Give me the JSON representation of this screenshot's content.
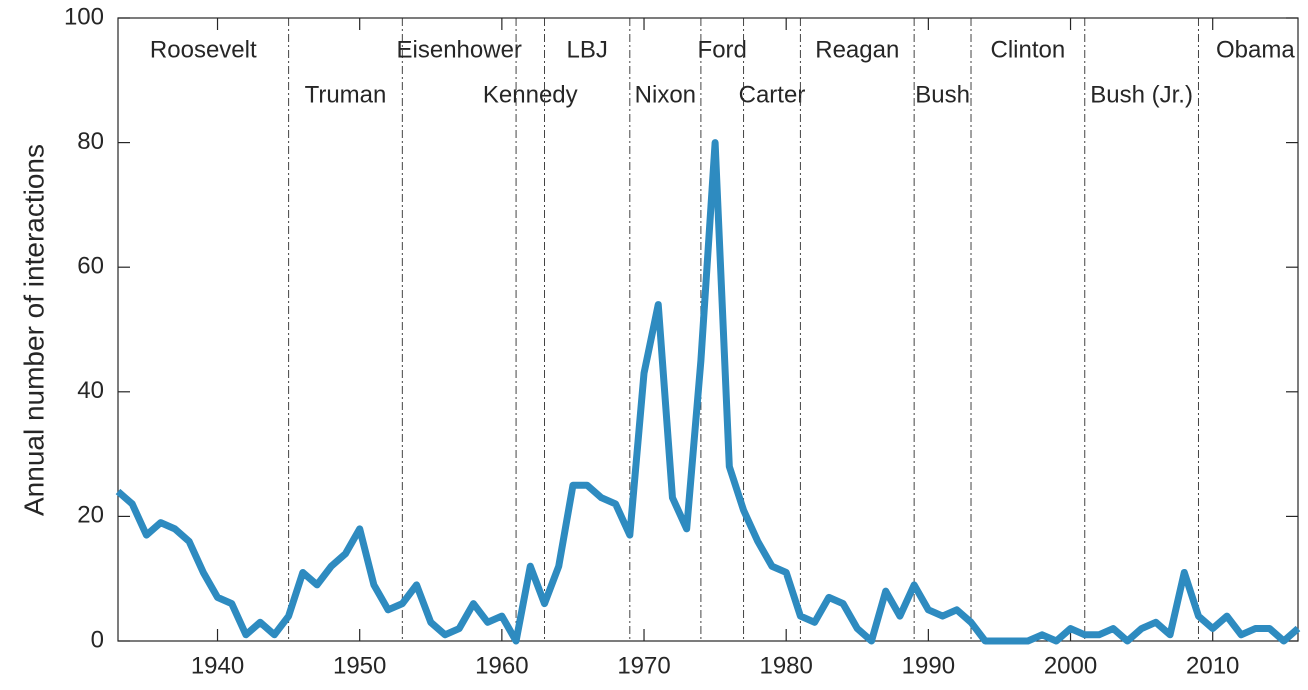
{
  "chart_data": {
    "type": "line",
    "y_label": "Annual number of interactions",
    "x": [
      1933,
      1934,
      1935,
      1936,
      1937,
      1938,
      1939,
      1940,
      1941,
      1942,
      1943,
      1944,
      1945,
      1946,
      1947,
      1948,
      1949,
      1950,
      1951,
      1952,
      1953,
      1954,
      1955,
      1956,
      1957,
      1958,
      1959,
      1960,
      1961,
      1962,
      1963,
      1964,
      1965,
      1966,
      1967,
      1968,
      1969,
      1970,
      1971,
      1972,
      1973,
      1974,
      1975,
      1976,
      1977,
      1978,
      1979,
      1980,
      1981,
      1982,
      1983,
      1984,
      1985,
      1986,
      1987,
      1988,
      1989,
      1990,
      1991,
      1992,
      1993,
      1994,
      1995,
      1996,
      1997,
      1998,
      1999,
      2000,
      2001,
      2002,
      2003,
      2004,
      2005,
      2006,
      2007,
      2008,
      2009,
      2010,
      2011,
      2012,
      2013,
      2014,
      2015,
      2016
    ],
    "values": [
      24,
      22,
      17,
      19,
      18,
      16,
      11,
      7,
      6,
      1,
      3,
      1,
      4,
      11,
      9,
      12,
      14,
      18,
      9,
      5,
      6,
      9,
      3,
      1,
      2,
      6,
      3,
      4,
      0,
      12,
      6,
      12,
      25,
      25,
      23,
      22,
      17,
      43,
      54,
      23,
      18,
      45,
      80,
      28,
      21,
      16,
      12,
      11,
      4,
      3,
      7,
      6,
      2,
      0,
      8,
      4,
      9,
      5,
      4,
      5,
      3,
      0,
      0,
      0,
      0,
      1,
      0,
      2,
      1,
      1,
      2,
      0,
      2,
      3,
      1,
      11,
      4,
      2,
      4,
      1,
      2,
      2,
      0,
      2
    ],
    "color": "#2e8bc0",
    "xlim": [
      1933,
      2016
    ],
    "xticks": [
      1940,
      1950,
      1960,
      1970,
      1980,
      1990,
      2000,
      2010
    ],
    "ylim": [
      0,
      100
    ],
    "yticks": [
      0,
      20,
      40,
      60,
      80,
      100
    ],
    "presidents": [
      {
        "name": "Roosevelt",
        "start": 1933,
        "end": 1945,
        "row": 1
      },
      {
        "name": "Truman",
        "start": 1945,
        "end": 1953,
        "row": 2
      },
      {
        "name": "Eisenhower",
        "start": 1953,
        "end": 1961,
        "row": 1
      },
      {
        "name": "Kennedy",
        "start": 1961,
        "end": 1963,
        "row": 2
      },
      {
        "name": "LBJ",
        "start": 1963,
        "end": 1969,
        "row": 1
      },
      {
        "name": "Nixon",
        "start": 1969,
        "end": 1974,
        "row": 2
      },
      {
        "name": "Ford",
        "start": 1974,
        "end": 1977,
        "row": 1
      },
      {
        "name": "Carter",
        "start": 1977,
        "end": 1981,
        "row": 2
      },
      {
        "name": "Reagan",
        "start": 1981,
        "end": 1989,
        "row": 1
      },
      {
        "name": "Bush",
        "start": 1989,
        "end": 1993,
        "row": 2
      },
      {
        "name": "Clinton",
        "start": 1993,
        "end": 2001,
        "row": 1
      },
      {
        "name": "Bush (Jr.)",
        "start": 2001,
        "end": 2009,
        "row": 2
      },
      {
        "name": "Obama",
        "start": 2009,
        "end": 2017,
        "row": 1
      }
    ]
  }
}
